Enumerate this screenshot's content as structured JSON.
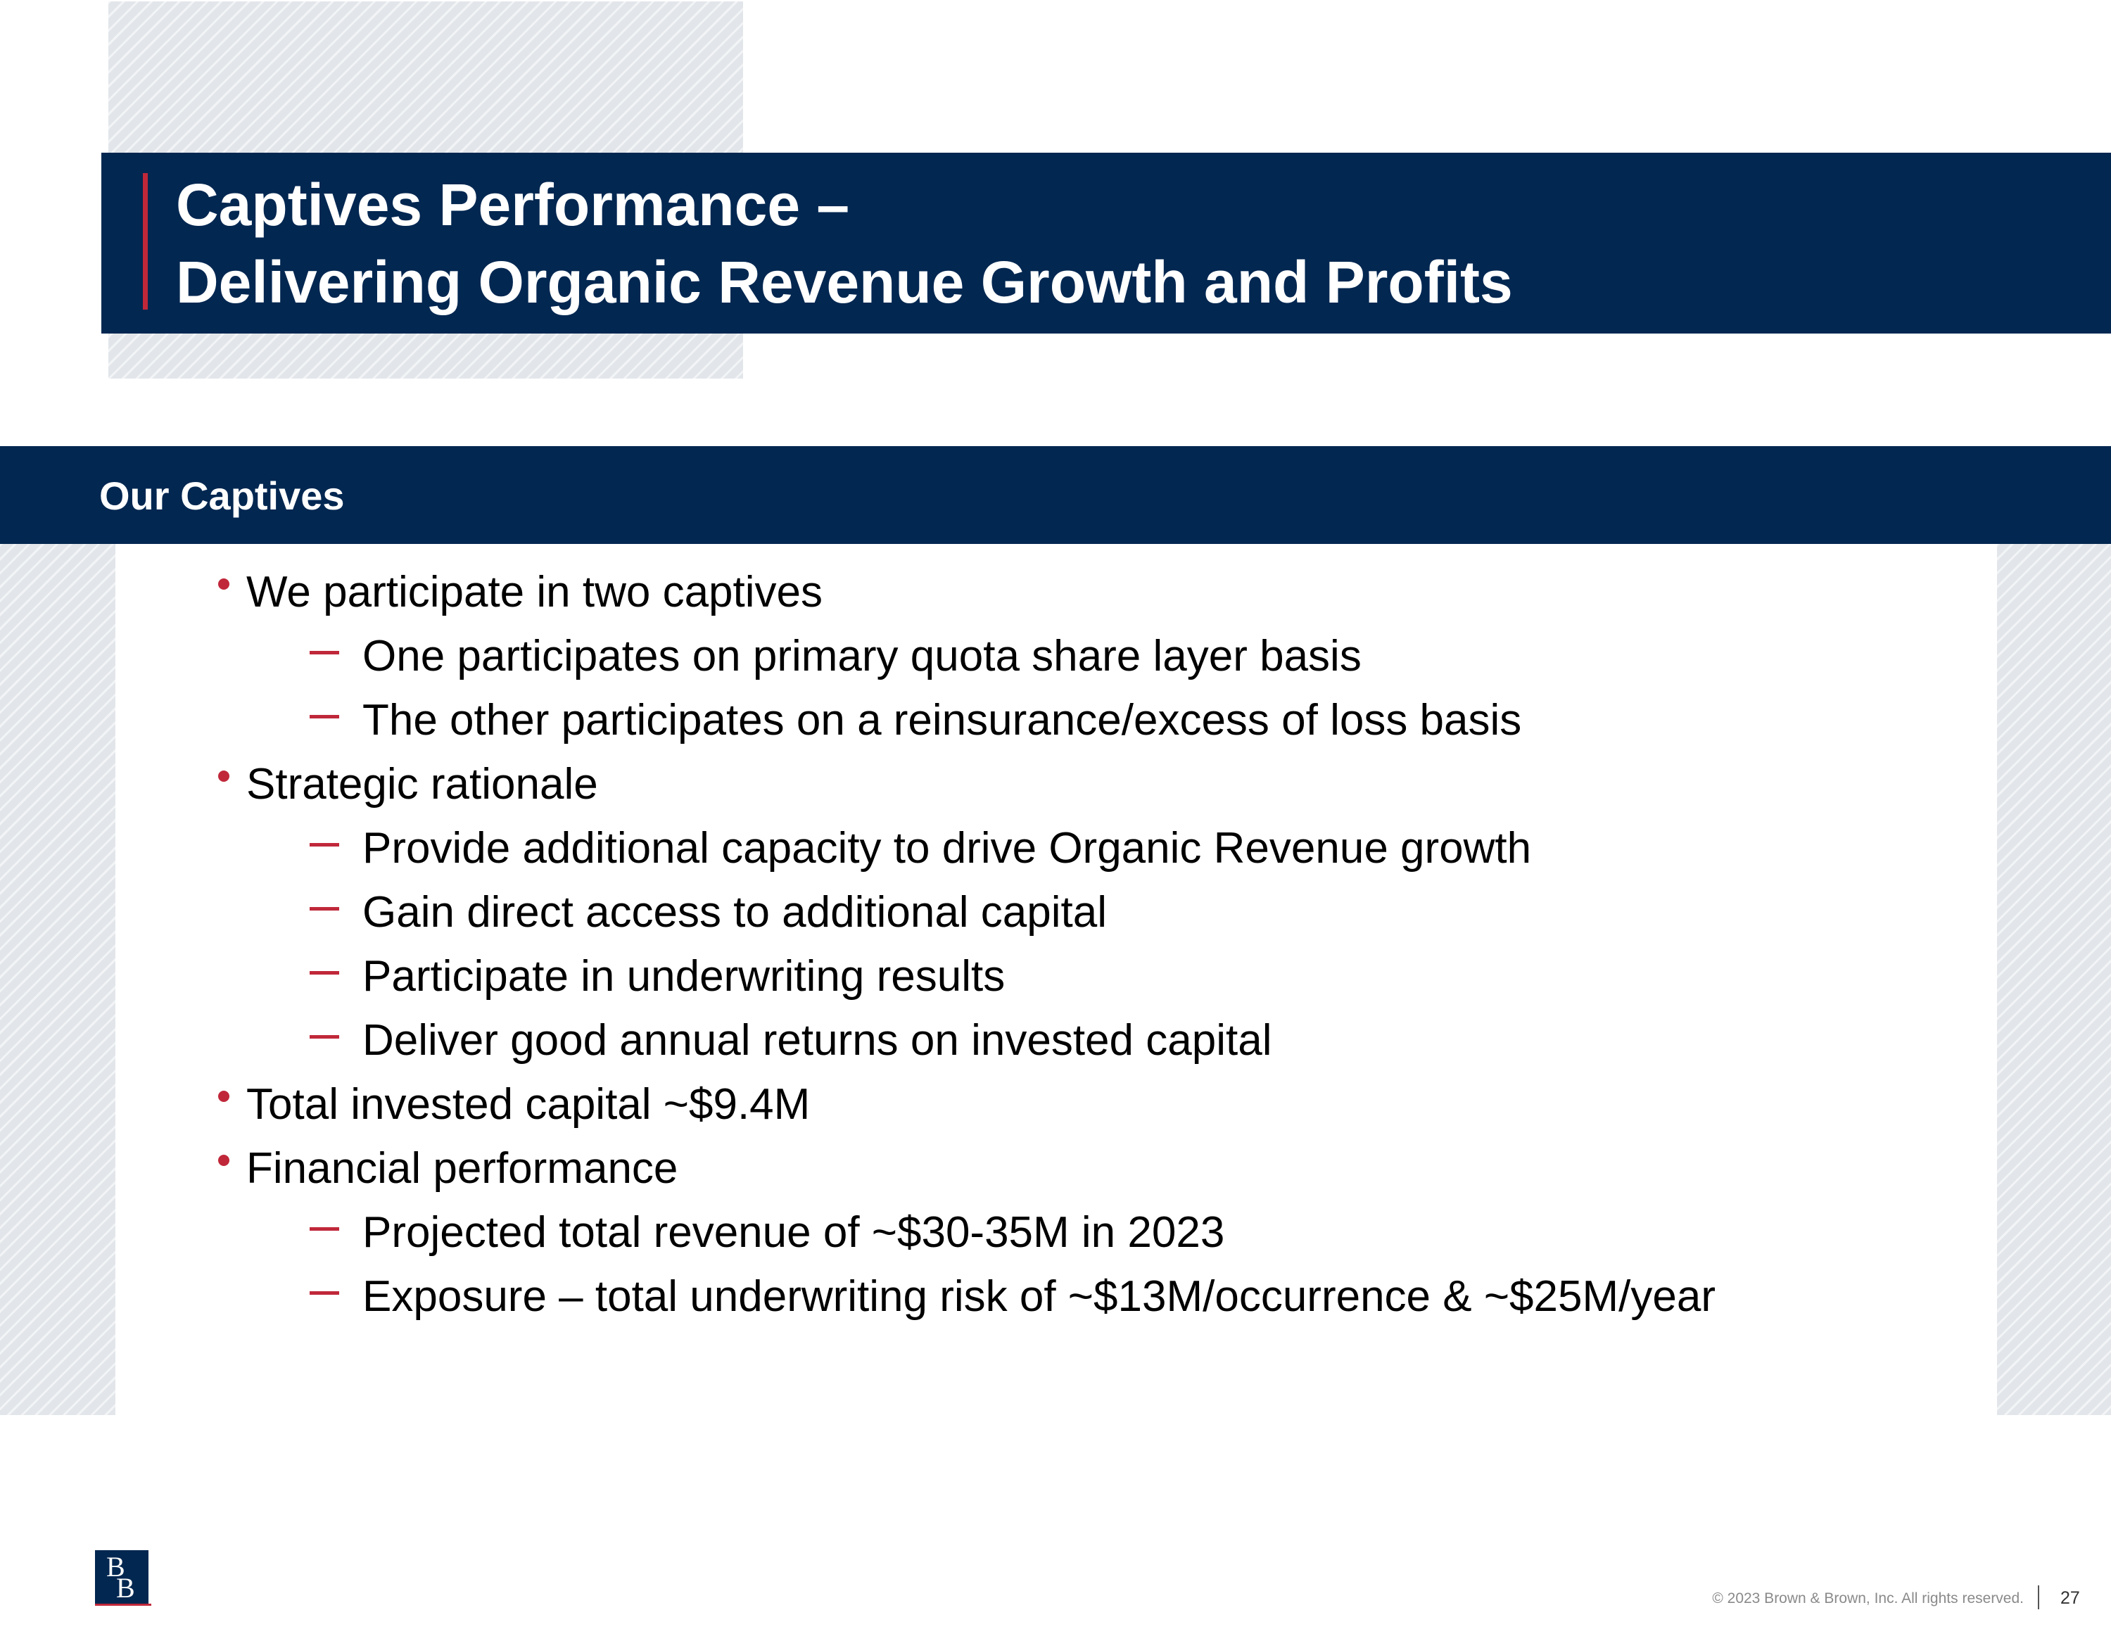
{
  "slide": {
    "title_line1": "Captives Performance –",
    "title_line2": "Delivering Organic Revenue Growth and Profits",
    "section_title": "Our Captives"
  },
  "content": {
    "items": [
      {
        "level": 1,
        "text": "We participate in two captives"
      },
      {
        "level": 2,
        "text": "One participates on primary quota share layer basis"
      },
      {
        "level": 2,
        "text": "The other participates on a reinsurance/excess of loss basis"
      },
      {
        "level": 1,
        "text": "Strategic rationale"
      },
      {
        "level": 2,
        "text": "Provide additional capacity to drive Organic Revenue growth"
      },
      {
        "level": 2,
        "text": "Gain direct access to additional capital"
      },
      {
        "level": 2,
        "text": "Participate in underwriting results"
      },
      {
        "level": 2,
        "text": "Deliver good annual returns on invested capital"
      },
      {
        "level": 1,
        "text": "Total invested capital ~$9.4M"
      },
      {
        "level": 1,
        "text": "Financial performance"
      },
      {
        "level": 2,
        "text": "Projected total revenue of ~$30-35M in 2023"
      },
      {
        "level": 2,
        "text": "Exposure – total underwriting risk of ~$13M/occurrence & ~$25M/year"
      }
    ]
  },
  "footer": {
    "logo_letter_top": "B",
    "logo_letter_bottom": "B",
    "copyright": "© 2023 Brown & Brown, Inc. All rights reserved.",
    "page_number": "27"
  },
  "colors": {
    "navy": "#022751",
    "accent_red": "#c0283a",
    "hatch_gray": "#e2e6ea"
  }
}
